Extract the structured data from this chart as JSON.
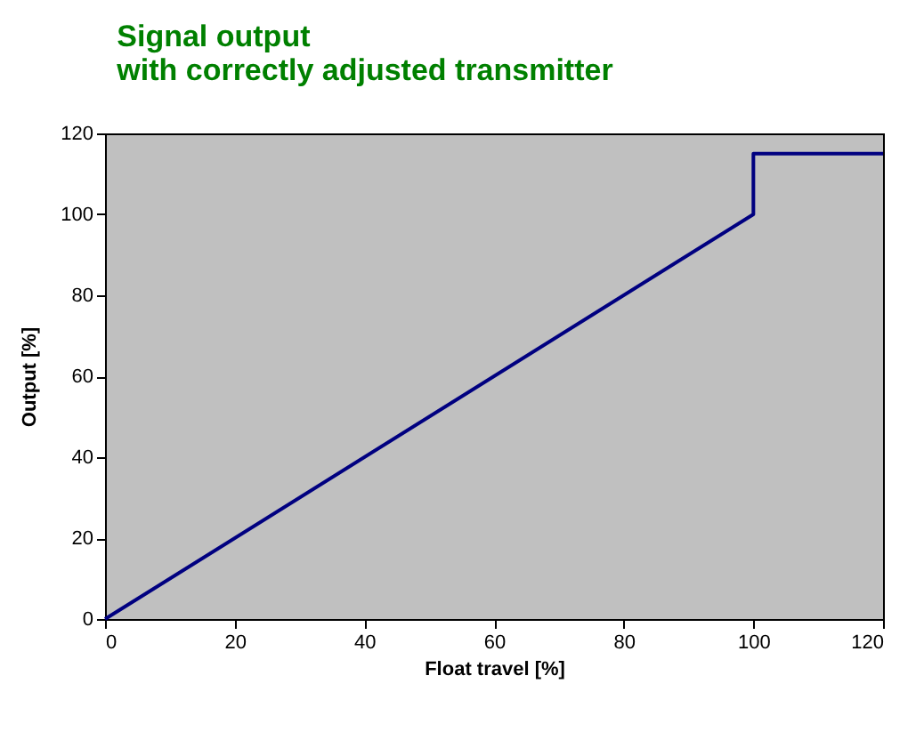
{
  "chart_data": {
    "type": "line",
    "title": "Signal output\nwith correctly adjusted transmitter",
    "xlabel": "Float travel [%]",
    "ylabel": "Output [%]",
    "x": [
      0,
      100,
      100,
      120
    ],
    "series": [
      {
        "color": "#000080",
        "values": [
          0,
          100,
          115,
          115
        ]
      }
    ],
    "xlim": [
      0,
      120
    ],
    "xticks": [
      0,
      20,
      40,
      60,
      80,
      100,
      120
    ],
    "ylim": [
      0,
      120
    ],
    "yticks": [
      0,
      20,
      40,
      60,
      80,
      100,
      120
    ],
    "grid": false,
    "marker": "none",
    "line_style": "solid"
  }
}
